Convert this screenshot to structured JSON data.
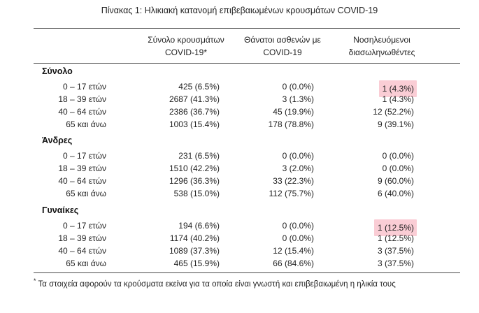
{
  "title": "Πίνακας 1: Ηλικιακή κατανομή επιβεβαιωμένων κρουσμάτων COVID-19",
  "headers": {
    "col1_line1": "Σύνολο κρουσμάτων",
    "col1_line2": "COVID-19*",
    "col2_line1": "Θάνατοι ασθενών με",
    "col2_line2": "COVID-19",
    "col3_line1": "Νοσηλευόμενοι",
    "col3_line2": "διασωληνωθέντες"
  },
  "sections": [
    {
      "name": "Σύνολο",
      "rows": [
        {
          "age": "0 – 17 ετών",
          "cases": "425 (6.5%)",
          "deaths": "0 (0.0%)",
          "intubated": "1 (4.3%)"
        },
        {
          "age": "18 – 39 ετών",
          "cases": "2687 (41.3%)",
          "deaths": "3 (1.3%)",
          "intubated": "1 (4.3%)"
        },
        {
          "age": "40 – 64 ετών",
          "cases": "2386 (36.7%)",
          "deaths": "45 (19.9%)",
          "intubated": "12 (52.2%)"
        },
        {
          "age": "65 και άνω",
          "cases": "1003 (15.4%)",
          "deaths": "178 (78.8%)",
          "intubated": "9 (39.1%)"
        }
      ]
    },
    {
      "name": "Άνδρες",
      "rows": [
        {
          "age": "0 – 17 ετών",
          "cases": "231 (6.5%)",
          "deaths": "0 (0.0%)",
          "intubated": "0 (0.0%)"
        },
        {
          "age": "18 – 39 ετών",
          "cases": "1510 (42.2%)",
          "deaths": "3 (2.0%)",
          "intubated": "0 (0.0%)"
        },
        {
          "age": "40 – 64 ετών",
          "cases": "1296 (36.3%)",
          "deaths": "33 (22.3%)",
          "intubated": "9 (60.0%)"
        },
        {
          "age": "65 και άνω",
          "cases": "538 (15.0%)",
          "deaths": "112 (75.7%)",
          "intubated": "6 (40.0%)"
        }
      ]
    },
    {
      "name": "Γυναίκες",
      "rows": [
        {
          "age": "0 – 17 ετών",
          "cases": "194 (6.6%)",
          "deaths": "0 (0.0%)",
          "intubated": "1 (12.5%)"
        },
        {
          "age": "18 – 39 ετών",
          "cases": "1174 (40.2%)",
          "deaths": "0 (0.0%)",
          "intubated": "1 (12.5%)"
        },
        {
          "age": "40 – 64 ετών",
          "cases": "1089 (37.3%)",
          "deaths": "12 (15.4%)",
          "intubated": "3 (37.5%)"
        },
        {
          "age": "65 και άνω",
          "cases": "465 (15.9%)",
          "deaths": "66 (84.6%)",
          "intubated": "3 (37.5%)"
        }
      ]
    }
  ],
  "footnote_marker": "*",
  "footnote": "Τα στοιχεία αφορούν τα κρούσματα εκείνα για τα οποία είναι γνωστή και επιβεβαιωμένη η ηλικία τους",
  "highlight_color": "#f6a4b2"
}
